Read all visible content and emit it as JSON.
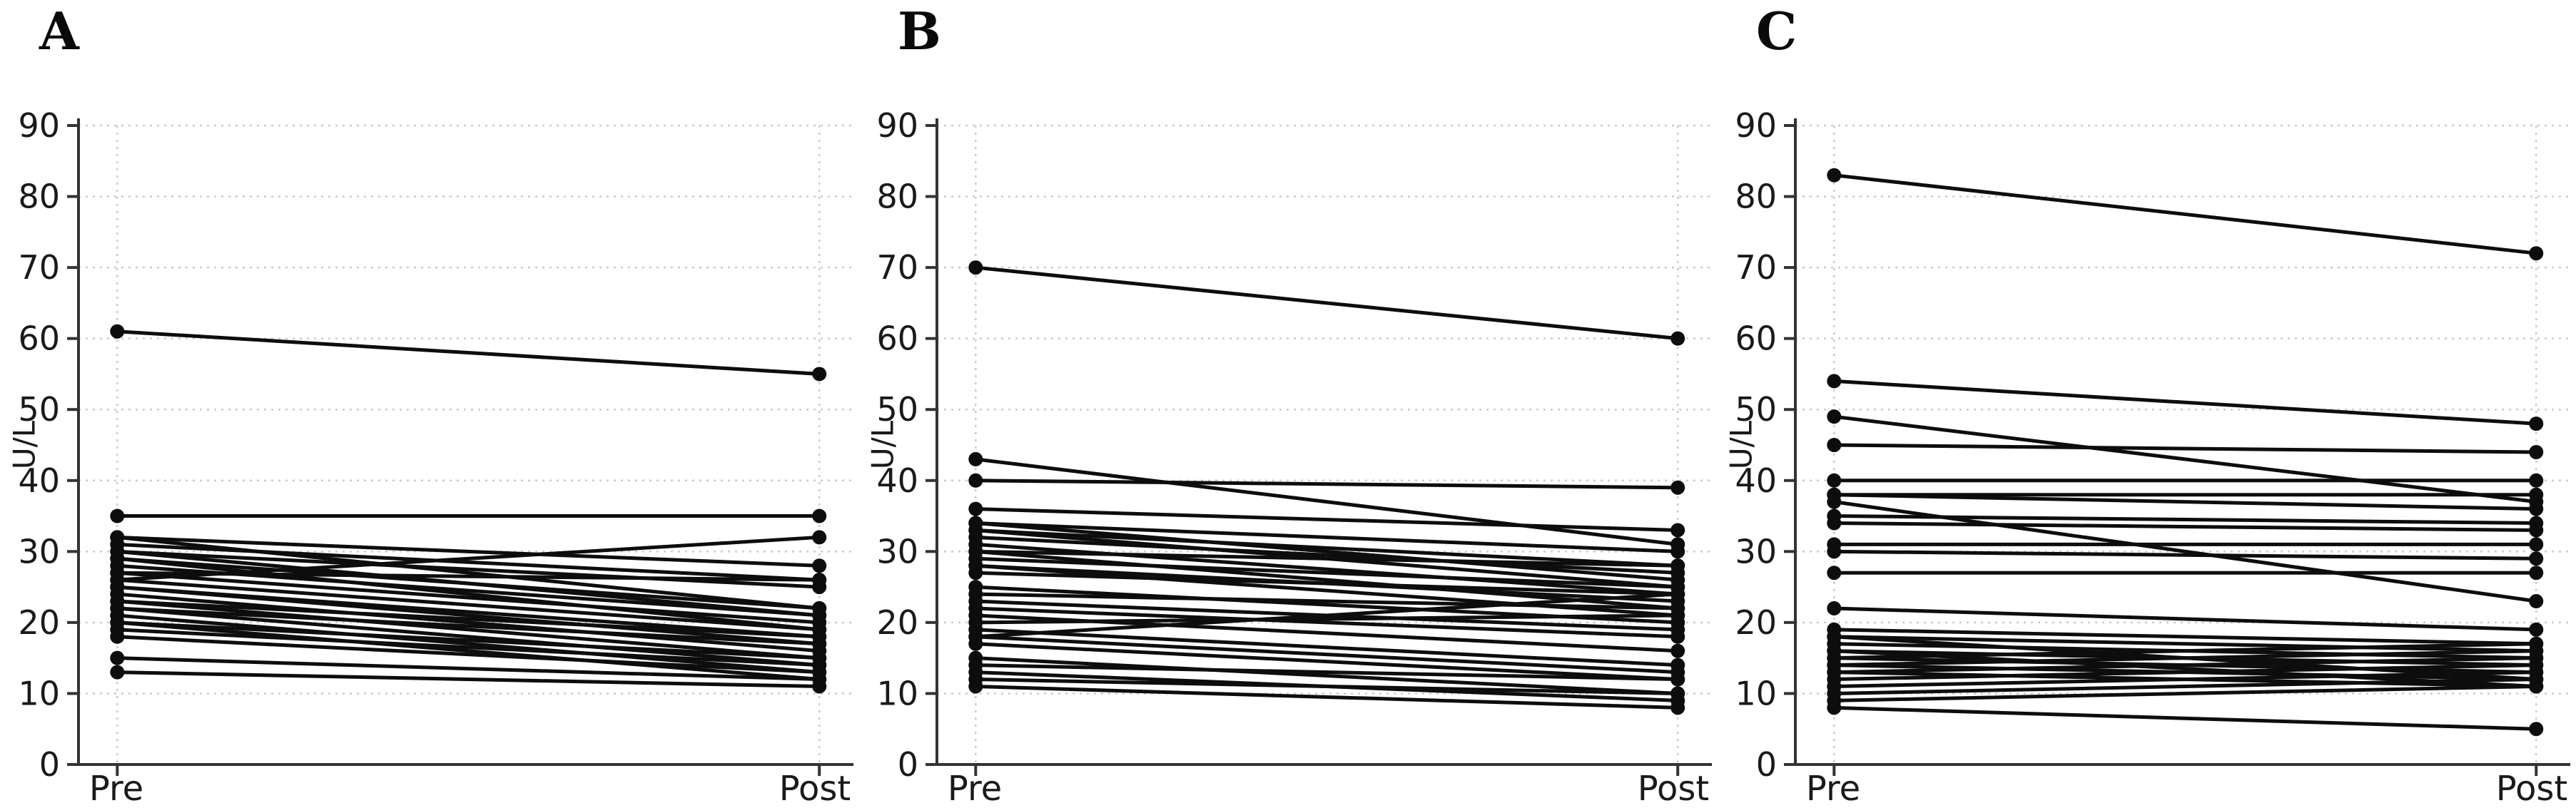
{
  "figure": {
    "background": "#ffffff",
    "n_panels": 3
  },
  "style": {
    "line_color": "#0d0d0d",
    "point_color": "#0d0d0d",
    "grid_color": "#cccccc",
    "axis_color": "#333333",
    "tick_label_color": "#1a1a1a",
    "point_radius": 10,
    "line_width": 5
  },
  "chart_data": [
    {
      "panel_label": "A",
      "type": "line",
      "subtype": "paired-slope",
      "ylabel": "U/L",
      "xlabel": "",
      "categories": [
        "Pre",
        "Post"
      ],
      "ylim": [
        0,
        90
      ],
      "yticks": [
        0,
        10,
        20,
        30,
        40,
        50,
        60,
        70,
        80,
        90
      ],
      "grid": true,
      "legend": "none",
      "pairs": [
        [
          61,
          55
        ],
        [
          35,
          35
        ],
        [
          32,
          28
        ],
        [
          32,
          22
        ],
        [
          31,
          26
        ],
        [
          30,
          25
        ],
        [
          30,
          21
        ],
        [
          29,
          22
        ],
        [
          29,
          19
        ],
        [
          28,
          21
        ],
        [
          27,
          26
        ],
        [
          27,
          20
        ],
        [
          26,
          32
        ],
        [
          26,
          19
        ],
        [
          25,
          18
        ],
        [
          25,
          17
        ],
        [
          24,
          16
        ],
        [
          23,
          18
        ],
        [
          23,
          15
        ],
        [
          22,
          17
        ],
        [
          22,
          14
        ],
        [
          21,
          13
        ],
        [
          20,
          15
        ],
        [
          20,
          12
        ],
        [
          19,
          14
        ],
        [
          18,
          13
        ],
        [
          15,
          12
        ],
        [
          13,
          11
        ]
      ]
    },
    {
      "panel_label": "B",
      "type": "line",
      "subtype": "paired-slope",
      "ylabel": "U/L",
      "xlabel": "",
      "categories": [
        "Pre",
        "Post"
      ],
      "ylim": [
        0,
        90
      ],
      "yticks": [
        0,
        10,
        20,
        30,
        40,
        50,
        60,
        70,
        80,
        90
      ],
      "grid": true,
      "legend": "none",
      "pairs": [
        [
          70,
          60
        ],
        [
          43,
          31
        ],
        [
          40,
          39
        ],
        [
          36,
          33
        ],
        [
          34,
          30
        ],
        [
          34,
          26
        ],
        [
          33,
          28
        ],
        [
          33,
          25
        ],
        [
          32,
          27
        ],
        [
          31,
          24
        ],
        [
          30,
          28
        ],
        [
          30,
          22
        ],
        [
          29,
          25
        ],
        [
          28,
          23
        ],
        [
          28,
          21
        ],
        [
          27,
          24
        ],
        [
          25,
          20
        ],
        [
          24,
          22
        ],
        [
          23,
          19
        ],
        [
          22,
          18
        ],
        [
          21,
          16
        ],
        [
          20,
          21
        ],
        [
          19,
          14
        ],
        [
          18,
          24
        ],
        [
          18,
          13
        ],
        [
          17,
          12
        ],
        [
          15,
          10
        ],
        [
          14,
          12
        ],
        [
          13,
          9
        ],
        [
          12,
          10
        ],
        [
          11,
          8
        ]
      ]
    },
    {
      "panel_label": "C",
      "type": "line",
      "subtype": "paired-slope",
      "ylabel": "U/L",
      "xlabel": "",
      "categories": [
        "Pre",
        "Post"
      ],
      "ylim": [
        0,
        90
      ],
      "yticks": [
        0,
        10,
        20,
        30,
        40,
        50,
        60,
        70,
        80,
        90
      ],
      "grid": true,
      "legend": "none",
      "pairs": [
        [
          83,
          72
        ],
        [
          54,
          48
        ],
        [
          49,
          37
        ],
        [
          45,
          44
        ],
        [
          40,
          40
        ],
        [
          38,
          38
        ],
        [
          38,
          36
        ],
        [
          37,
          23
        ],
        [
          35,
          34
        ],
        [
          34,
          33
        ],
        [
          31,
          31
        ],
        [
          30,
          29
        ],
        [
          27,
          27
        ],
        [
          22,
          19
        ],
        [
          19,
          17
        ],
        [
          18,
          16
        ],
        [
          18,
          12
        ],
        [
          17,
          15
        ],
        [
          16,
          14
        ],
        [
          16,
          11
        ],
        [
          15,
          13
        ],
        [
          15,
          17
        ],
        [
          14,
          12
        ],
        [
          14,
          16
        ],
        [
          13,
          11
        ],
        [
          13,
          15
        ],
        [
          12,
          14
        ],
        [
          11,
          13
        ],
        [
          10,
          12
        ],
        [
          9,
          11
        ],
        [
          8,
          5
        ]
      ]
    }
  ]
}
